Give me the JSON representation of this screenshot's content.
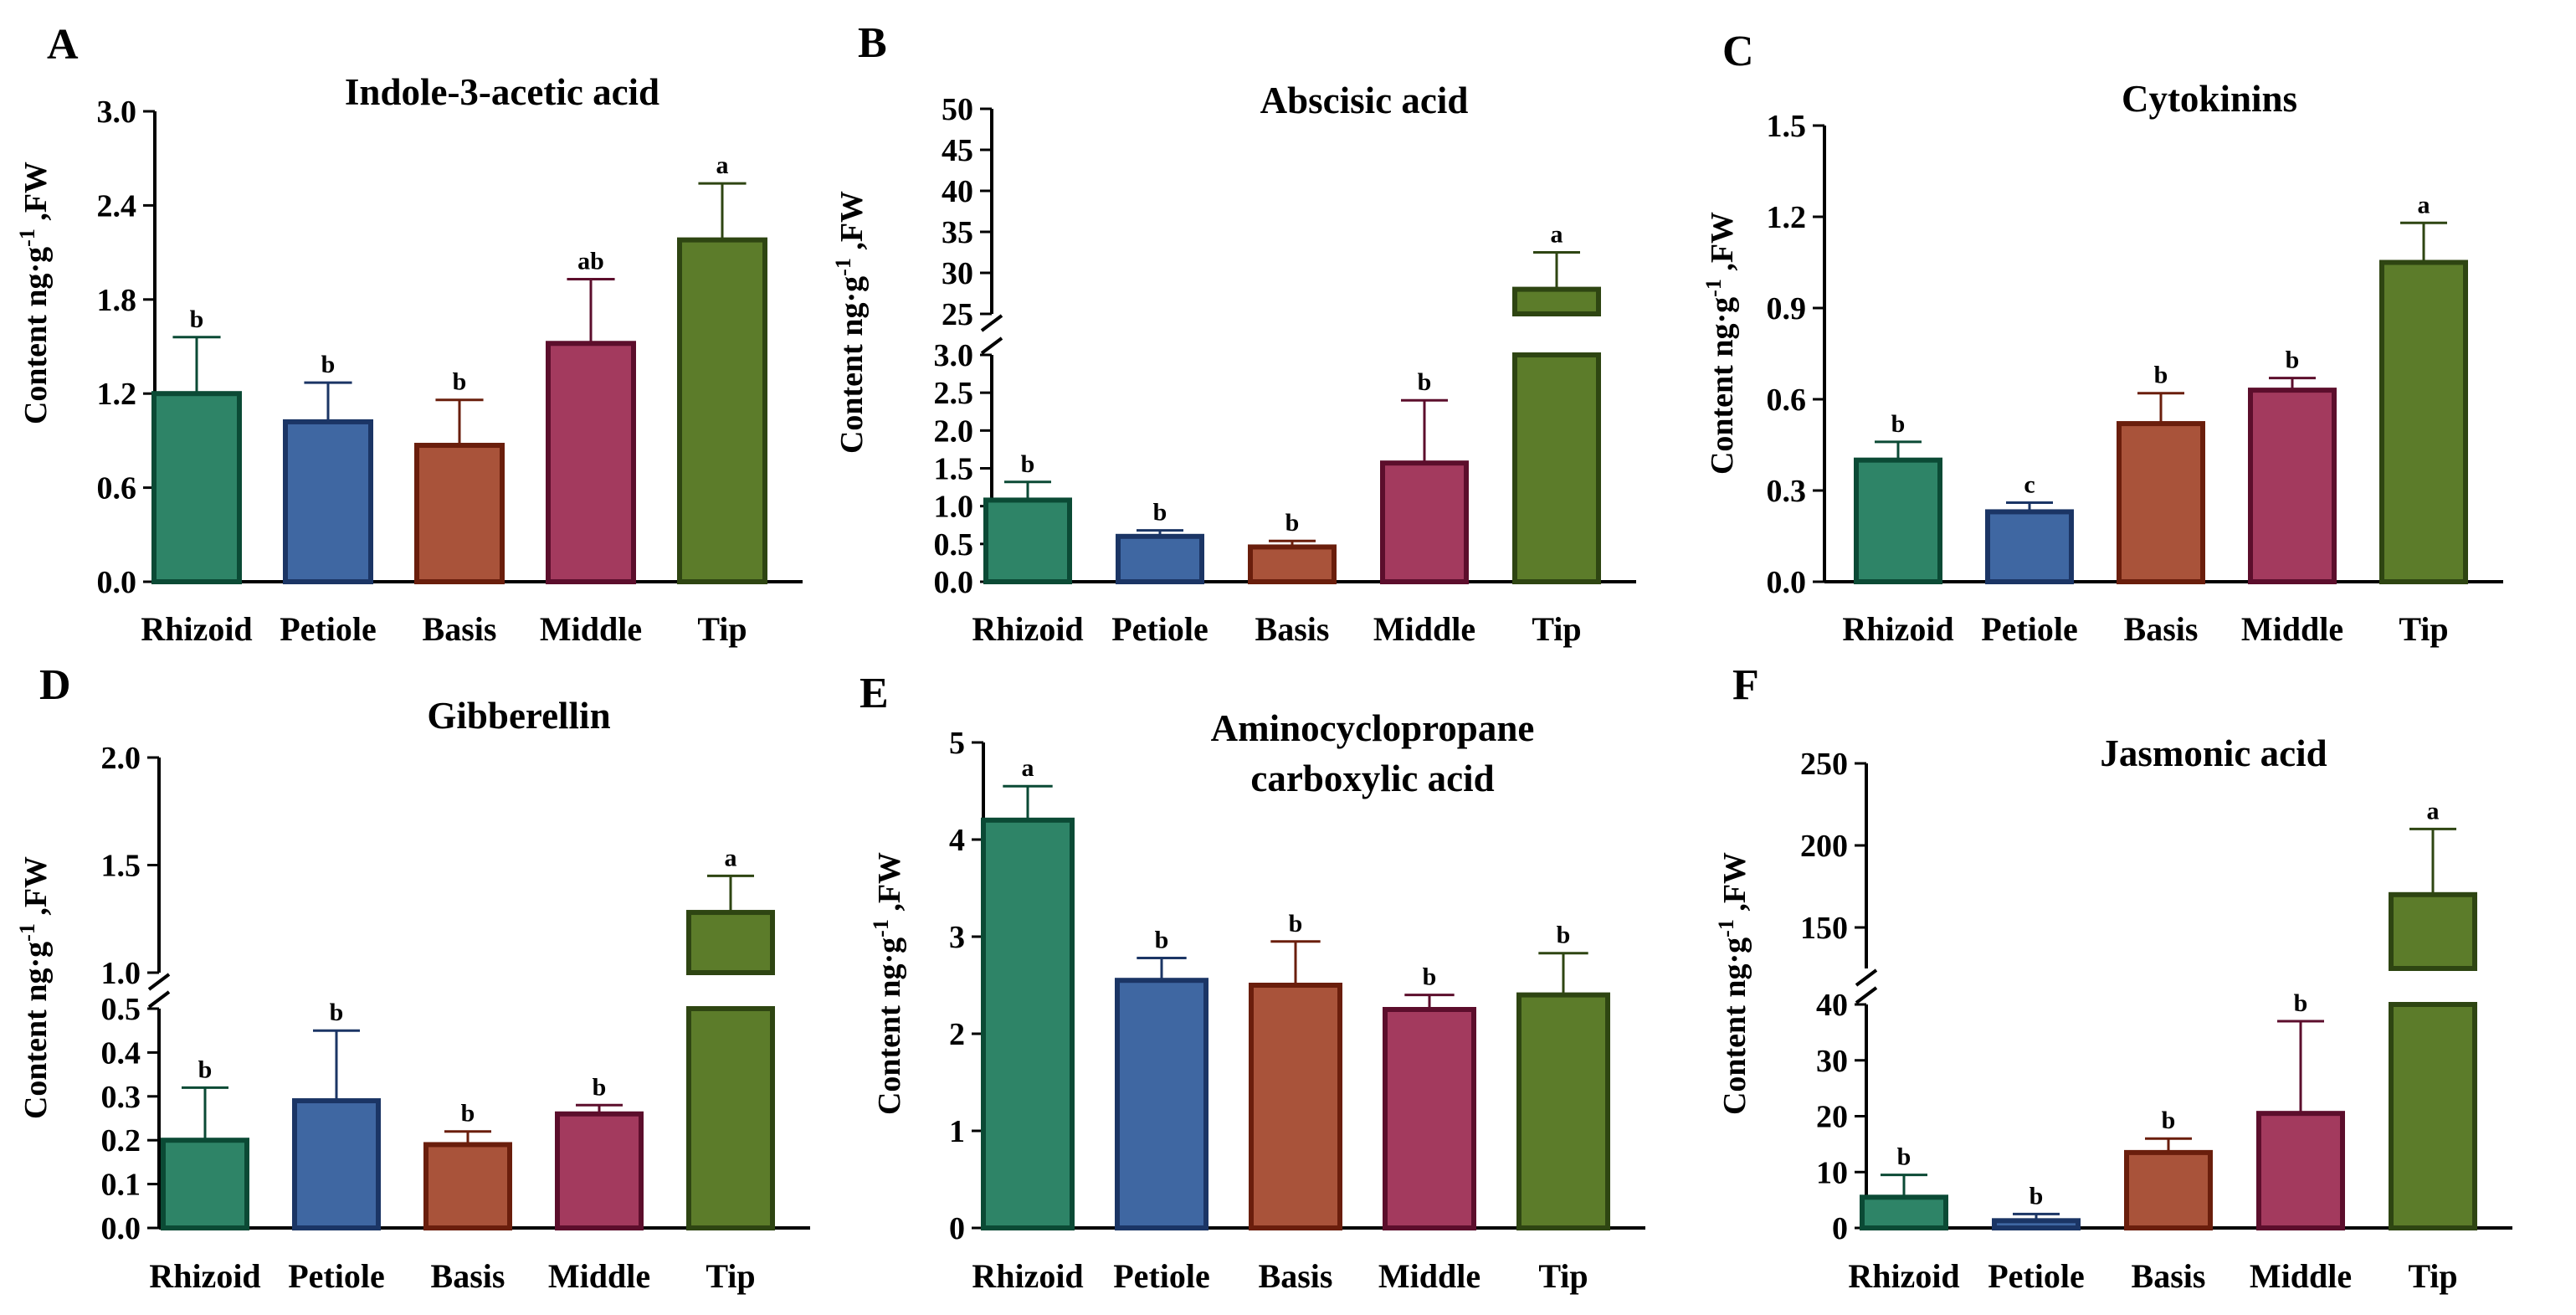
{
  "figure": {
    "y_label_main": "Content ng·g",
    "y_label_sup": "-1",
    "y_label_tail": " ,FW"
  },
  "colors": {
    "Rhizoid": {
      "fill": "#2e8467",
      "stroke": "#0b4a35"
    },
    "Petiole": {
      "fill": "#3f67a2",
      "stroke": "#1b3565"
    },
    "Basis": {
      "fill": "#a9533a",
      "stroke": "#6a1e0c"
    },
    "Middle": {
      "fill": "#a33a5e",
      "stroke": "#5c0e2c"
    },
    "Tip": {
      "fill": "#5c7c2a",
      "stroke": "#2e4512"
    }
  },
  "chart_data": [
    {
      "panel": "A",
      "title": "Indole-3-acetic acid",
      "type": "bar",
      "categories": [
        "Rhizoid",
        "Petiole",
        "Basis",
        "Middle",
        "Tip"
      ],
      "values": [
        1.2,
        1.02,
        0.87,
        1.52,
        2.18
      ],
      "errors": [
        0.36,
        0.25,
        0.29,
        0.41,
        0.36
      ],
      "significance": [
        "b",
        "b",
        "b",
        "ab",
        "a"
      ],
      "ylim": [
        0,
        3.0
      ],
      "yticks": [
        "0.0",
        "0.6",
        "1.2",
        "1.8",
        "2.4",
        "3.0"
      ]
    },
    {
      "panel": "B",
      "title": "Abscisic acid",
      "type": "bar",
      "categories": [
        "Rhizoid",
        "Petiole",
        "Basis",
        "Middle",
        "Tip"
      ],
      "values": [
        1.08,
        0.6,
        0.46,
        1.57,
        28
      ],
      "errors": [
        0.24,
        0.08,
        0.08,
        0.83,
        4.5
      ],
      "significance": [
        "b",
        "b",
        "b",
        "b",
        "a"
      ],
      "broken_axis": {
        "lower": [
          0,
          3.0
        ],
        "upper": [
          25,
          50
        ]
      },
      "yticks_lower": [
        "0.0",
        "0.5",
        "1.0",
        "1.5",
        "2.0",
        "2.5",
        "3.0"
      ],
      "yticks_upper": [
        "25",
        "30",
        "35",
        "40",
        "45",
        "50"
      ]
    },
    {
      "panel": "C",
      "title": "Cytokinins",
      "type": "bar",
      "categories": [
        "Rhizoid",
        "Petiole",
        "Basis",
        "Middle",
        "Tip"
      ],
      "values": [
        0.4,
        0.23,
        0.52,
        0.63,
        1.05
      ],
      "errors": [
        0.06,
        0.03,
        0.1,
        0.04,
        0.13
      ],
      "significance": [
        "b",
        "c",
        "b",
        "b",
        "a"
      ],
      "ylim": [
        0,
        1.5
      ],
      "yticks": [
        "0.0",
        "0.3",
        "0.6",
        "0.9",
        "1.2",
        "1.5"
      ]
    },
    {
      "panel": "D",
      "title": "Gibberellin",
      "type": "bar",
      "categories": [
        "Rhizoid",
        "Petiole",
        "Basis",
        "Middle",
        "Tip"
      ],
      "values": [
        0.2,
        0.29,
        0.19,
        0.26,
        1.28
      ],
      "errors": [
        0.12,
        0.16,
        0.03,
        0.02,
        0.17
      ],
      "significance": [
        "b",
        "b",
        "b",
        "b",
        "a"
      ],
      "broken_axis": {
        "lower": [
          0,
          0.5
        ],
        "upper": [
          1.0,
          2.0
        ]
      },
      "yticks_lower": [
        "0.0",
        "0.1",
        "0.2",
        "0.3",
        "0.4",
        "0.5"
      ],
      "yticks_upper": [
        "1.0",
        "1.5",
        "2.0"
      ]
    },
    {
      "panel": "E",
      "title": [
        "Aminocyclopropane",
        "carboxylic acid"
      ],
      "type": "bar",
      "categories": [
        "Rhizoid",
        "Petiole",
        "Basis",
        "Middle",
        "Tip"
      ],
      "values": [
        4.2,
        2.55,
        2.5,
        2.25,
        2.4
      ],
      "errors": [
        0.35,
        0.23,
        0.45,
        0.15,
        0.43
      ],
      "significance": [
        "a",
        "b",
        "b",
        "b",
        "b"
      ],
      "ylim": [
        0,
        5
      ],
      "yticks": [
        "0",
        "1",
        "2",
        "3",
        "4",
        "5"
      ]
    },
    {
      "panel": "F",
      "title": "Jasmonic acid",
      "type": "bar",
      "categories": [
        "Rhizoid",
        "Petiole",
        "Basis",
        "Middle",
        "Tip"
      ],
      "values": [
        5.5,
        1.3,
        13.5,
        20.5,
        170
      ],
      "errors": [
        4,
        1.2,
        2.5,
        16.5,
        40
      ],
      "significance": [
        "b",
        "b",
        "b",
        "b",
        "a"
      ],
      "broken_axis": {
        "lower": [
          0,
          40
        ],
        "upper": [
          125,
          250
        ]
      },
      "yticks_lower": [
        "0",
        "10",
        "20",
        "30",
        "40"
      ],
      "yticks_upper": [
        "150",
        "200",
        "250"
      ]
    }
  ]
}
